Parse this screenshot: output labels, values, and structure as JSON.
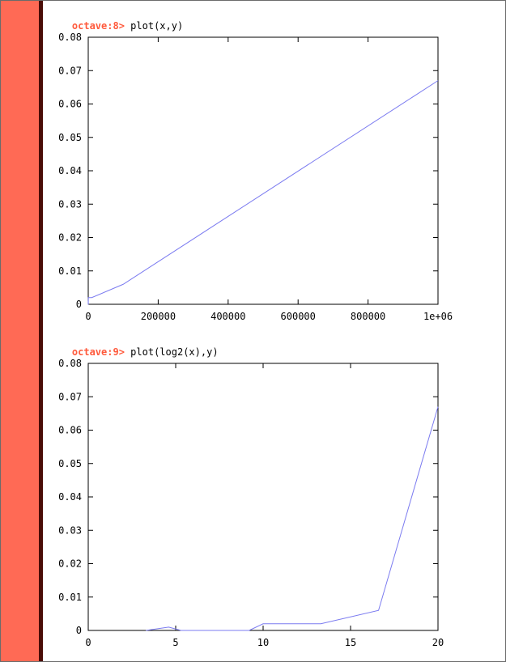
{
  "colors": {
    "prompt": "#ff5a3c",
    "gutter": "#ff6a55",
    "line": "#7b7bf0"
  },
  "session": [
    {
      "prompt": "octave:8>",
      "command": "plot(x,y)"
    },
    {
      "prompt": "octave:9>",
      "command": "plot(log2(x),y)"
    }
  ],
  "chart_data": [
    {
      "type": "line",
      "title": "",
      "xlabel": "",
      "ylabel": "",
      "xlim": [
        0,
        1000000
      ],
      "ylim": [
        0,
        0.08
      ],
      "grid": false,
      "xticks": [
        0,
        200000,
        400000,
        600000,
        800000,
        1000000
      ],
      "xtick_labels": [
        "0",
        "200000",
        "400000",
        "600000",
        "800000",
        "1e+06"
      ],
      "yticks": [
        0,
        0.01,
        0.02,
        0.03,
        0.04,
        0.05,
        0.06,
        0.07,
        0.08
      ],
      "ytick_labels": [
        "0",
        "0.01",
        "0.02",
        "0.03",
        "0.04",
        "0.05",
        "0.06",
        "0.07",
        "0.08"
      ],
      "series": [
        {
          "x": [
            0,
            10,
            25,
            40,
            100,
            400,
            600,
            10000,
            100000,
            1000000
          ],
          "y": [
            0.001,
            0.001,
            0.0,
            0.0,
            0.0,
            0.002,
            0.002,
            0.002,
            0.006,
            0.067
          ]
        }
      ]
    },
    {
      "type": "line",
      "title": "",
      "xlabel": "",
      "ylabel": "",
      "xlim": [
        0,
        20
      ],
      "ylim": [
        0,
        0.08
      ],
      "grid": false,
      "xticks": [
        0,
        5,
        10,
        15,
        20
      ],
      "xtick_labels": [
        "0",
        "5",
        "10",
        "15",
        "20"
      ],
      "yticks": [
        0,
        0.01,
        0.02,
        0.03,
        0.04,
        0.05,
        0.06,
        0.07,
        0.08
      ],
      "ytick_labels": [
        "0",
        "0.01",
        "0.02",
        "0.03",
        "0.04",
        "0.05",
        "0.06",
        "0.07",
        "0.08"
      ],
      "series": [
        {
          "x": [
            3.3,
            4.6,
            5.3,
            6.6,
            9.2,
            10.0,
            13.3,
            16.6,
            20.0
          ],
          "y": [
            0.0,
            0.001,
            0.0,
            0.0,
            0.0,
            0.002,
            0.002,
            0.006,
            0.067
          ]
        }
      ]
    }
  ]
}
